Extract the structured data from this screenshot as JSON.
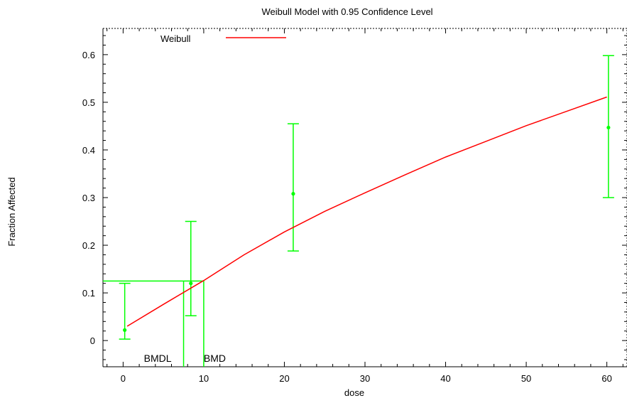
{
  "chart_data": {
    "type": "line",
    "title": "Weibull Model with 0.95 Confidence Level",
    "xlabel": "dose",
    "ylabel": "Fraction Affected",
    "xlim": [
      -2.5,
      62.5
    ],
    "ylim": [
      -0.055,
      0.655
    ],
    "x_ticks": [
      0,
      10,
      20,
      30,
      40,
      50,
      60
    ],
    "y_ticks": [
      0,
      0.1,
      0.2,
      0.3,
      0.4,
      0.5,
      0.6
    ],
    "legend": {
      "label": "Weibull",
      "placement": "top-left"
    },
    "grid": false,
    "series": [
      {
        "name": "Weibull",
        "color": "#ff0000",
        "kind": "line",
        "x": [
          0.5,
          5,
          10,
          15,
          20,
          25,
          30,
          35,
          40,
          45,
          50,
          55,
          60
        ],
        "y": [
          0.03,
          0.076,
          0.126,
          0.18,
          0.228,
          0.271,
          0.31,
          0.348,
          0.385,
          0.418,
          0.451,
          0.481,
          0.511
        ]
      },
      {
        "name": "",
        "color": "#00ff00",
        "kind": "errorbar",
        "x": [
          0.2,
          8.4,
          21.1,
          60.2
        ],
        "y": [
          0.022,
          0.12,
          0.308,
          0.447
        ],
        "lower": [
          0.003,
          0.052,
          0.188,
          0.3
        ],
        "upper": [
          0.12,
          0.25,
          0.455,
          0.598
        ]
      }
    ],
    "bmr_level": 0.125,
    "annotations": [
      {
        "text": "BMDL",
        "x": 7.5
      },
      {
        "text": "BMD",
        "x": 10.0
      }
    ]
  }
}
